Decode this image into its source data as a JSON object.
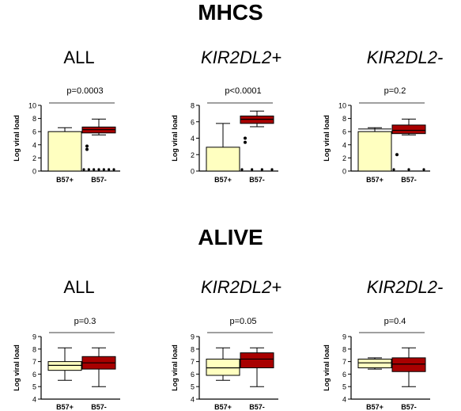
{
  "sections": [
    {
      "title": "MHCS"
    },
    {
      "title": "ALIVE"
    }
  ],
  "colors": {
    "b57pos": "#ffffc0",
    "b57neg": "#a80000",
    "stroke": "#000000"
  },
  "chart_data": [
    {
      "type": "bar",
      "section": "MHCS",
      "title": "ALL",
      "italic": false,
      "ylabel": "Log viral load",
      "ylim": [
        0,
        10
      ],
      "yticks": [
        0,
        2,
        4,
        6,
        8,
        10
      ],
      "categories": [
        "B57+",
        "B57-"
      ],
      "pvalue": "p=0.0003",
      "bar": {
        "category": "B57+",
        "value": 6.0,
        "error_upper": 6.6
      },
      "box": {
        "category": "B57-",
        "whisker_low": 5.5,
        "q1": 5.8,
        "median": 6.3,
        "q3": 6.7,
        "whisker_high": 7.9,
        "outliers": [
          3.8,
          3.3,
          0,
          0,
          0,
          0,
          0,
          0,
          0
        ]
      }
    },
    {
      "type": "bar",
      "section": "MHCS",
      "title": "KIR2DL2+",
      "italic": true,
      "ylabel": "Log viral load",
      "ylim": [
        0,
        8
      ],
      "yticks": [
        0,
        2,
        4,
        6,
        8
      ],
      "categories": [
        "B57+",
        "B57-"
      ],
      "pvalue": "p<0.0001",
      "bar": {
        "category": "B57+",
        "value": 2.9,
        "error_upper": 5.8
      },
      "box": {
        "category": "B57-",
        "whisker_low": 5.4,
        "q1": 5.8,
        "median": 6.3,
        "q3": 6.7,
        "whisker_high": 7.3,
        "outliers": [
          4.0,
          3.5,
          0,
          0,
          0,
          0
        ]
      }
    },
    {
      "type": "bar",
      "section": "MHCS",
      "title": "KIR2DL2-",
      "italic": true,
      "ylabel": "Log viral load",
      "ylim": [
        0,
        10
      ],
      "yticks": [
        0,
        2,
        4,
        6,
        8,
        10
      ],
      "categories": [
        "B57+",
        "B57-"
      ],
      "pvalue": "p=0.2",
      "bar": {
        "category": "B57+",
        "value": 6.0,
        "error_upper": 6.6,
        "error_lower": 6.4
      },
      "box": {
        "category": "B57-",
        "whisker_low": 5.5,
        "q1": 5.7,
        "median": 6.2,
        "q3": 7.0,
        "whisker_high": 7.9,
        "outliers": [
          2.5,
          0,
          0,
          0
        ]
      }
    },
    {
      "type": "box",
      "section": "ALIVE",
      "title": "ALL",
      "italic": false,
      "ylabel": "Log viral load",
      "ylim": [
        4,
        9
      ],
      "yticks": [
        4,
        5,
        6,
        7,
        8,
        9
      ],
      "categories": [
        "B57+",
        "B57-"
      ],
      "pvalue": "p=0.3",
      "boxes": [
        {
          "category": "B57+",
          "whisker_low": 5.5,
          "q1": 6.3,
          "median": 6.7,
          "q3": 7.0,
          "whisker_high": 8.1
        },
        {
          "category": "B57-",
          "whisker_low": 5.0,
          "q1": 6.4,
          "median": 6.9,
          "q3": 7.4,
          "whisker_high": 8.1
        }
      ]
    },
    {
      "type": "box",
      "section": "ALIVE",
      "title": "KIR2DL2+",
      "italic": true,
      "ylabel": "Log viral load",
      "ylim": [
        4,
        9
      ],
      "yticks": [
        4,
        5,
        6,
        7,
        8,
        9
      ],
      "categories": [
        "B57+",
        "B57-"
      ],
      "pvalue": "p=0.05",
      "boxes": [
        {
          "category": "B57+",
          "whisker_low": 5.5,
          "q1": 5.9,
          "median": 6.5,
          "q3": 7.2,
          "whisker_high": 8.1
        },
        {
          "category": "B57-",
          "whisker_low": 5.0,
          "q1": 6.5,
          "median": 7.2,
          "q3": 7.7,
          "whisker_high": 8.1
        }
      ]
    },
    {
      "type": "box",
      "section": "ALIVE",
      "title": "KIR2DL2-",
      "italic": true,
      "ylabel": "Log viral load",
      "ylim": [
        4,
        9
      ],
      "yticks": [
        4,
        5,
        6,
        7,
        8,
        9
      ],
      "categories": [
        "B57+",
        "B57-"
      ],
      "pvalue": "p=0.4",
      "boxes": [
        {
          "category": "B57+",
          "whisker_low": 6.4,
          "q1": 6.5,
          "median": 6.9,
          "q3": 7.2,
          "whisker_high": 7.3
        },
        {
          "category": "B57-",
          "whisker_low": 5.0,
          "q1": 6.2,
          "median": 6.8,
          "q3": 7.3,
          "whisker_high": 8.1
        }
      ]
    }
  ]
}
